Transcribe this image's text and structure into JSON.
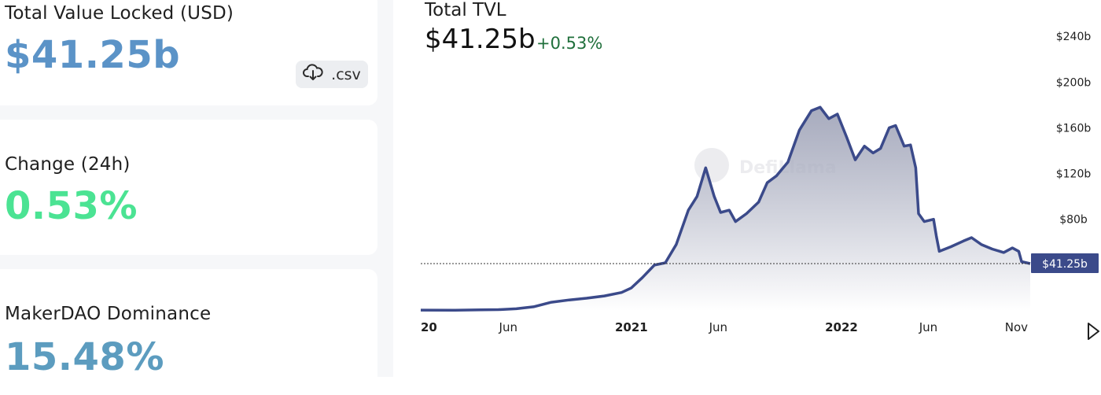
{
  "summary": {
    "tvl_label": "Total Value Locked (USD)",
    "tvl_value": "$41.25b",
    "csv_label": ".csv",
    "change_label": "Change (24h)",
    "change_value": "0.53%",
    "dominance_label": "MakerDAO Dominance",
    "dominance_value": "15.48%"
  },
  "colors": {
    "tvl_value": "#5b93c7",
    "change_value": "#4be393",
    "dominance_value": "#5c9cbf",
    "line": "#3b4a8a",
    "marker_bg": "#3b4a8a"
  },
  "icons": {
    "csv": "cloud-download-icon",
    "play": "play-icon"
  },
  "header": {
    "title": "Total TVL",
    "value": "$41.25b",
    "change": "+0.53%"
  },
  "watermark": "DefiLlama",
  "chart_data": {
    "type": "area",
    "title": "Total TVL",
    "ylabel": "",
    "xlabel": "",
    "y_unit": "b",
    "ylim": [
      0,
      258
    ],
    "xlim": [
      "2020-01-01",
      "2022-11-25"
    ],
    "y_ticks": [
      {
        "value": 240,
        "label": "$240b"
      },
      {
        "value": 200,
        "label": "$200b"
      },
      {
        "value": 160,
        "label": "$160b"
      },
      {
        "value": 120,
        "label": "$120b"
      },
      {
        "value": 80,
        "label": "$80b"
      }
    ],
    "x_ticks": [
      {
        "date": "2020-01-01",
        "label": "20",
        "bold": true
      },
      {
        "date": "2020-06-01",
        "label": "Jun",
        "bold": false
      },
      {
        "date": "2021-01-01",
        "label": "2021",
        "bold": true
      },
      {
        "date": "2021-06-01",
        "label": "Jun",
        "bold": false
      },
      {
        "date": "2022-01-01",
        "label": "2022",
        "bold": true
      },
      {
        "date": "2022-06-01",
        "label": "Jun",
        "bold": false
      },
      {
        "date": "2022-11-01",
        "label": "Nov",
        "bold": false
      }
    ],
    "current": {
      "value": 41.25,
      "label": "$41.25b"
    },
    "series": [
      {
        "points": [
          [
            "2020-01-01",
            0.6
          ],
          [
            "2020-03-01",
            0.5
          ],
          [
            "2020-04-15",
            0.8
          ],
          [
            "2020-05-15",
            1.0
          ],
          [
            "2020-06-15",
            1.8
          ],
          [
            "2020-07-15",
            3.5
          ],
          [
            "2020-08-15",
            7.5
          ],
          [
            "2020-09-15",
            9.5
          ],
          [
            "2020-10-15",
            11
          ],
          [
            "2020-11-15",
            13
          ],
          [
            "2020-12-15",
            16
          ],
          [
            "2021-01-01",
            20
          ],
          [
            "2021-01-20",
            29
          ],
          [
            "2021-02-10",
            40
          ],
          [
            "2021-03-01",
            42
          ],
          [
            "2021-03-20",
            58
          ],
          [
            "2021-04-10",
            88
          ],
          [
            "2021-04-25",
            100
          ],
          [
            "2021-05-10",
            125
          ],
          [
            "2021-05-25",
            100
          ],
          [
            "2021-06-05",
            86
          ],
          [
            "2021-06-20",
            88
          ],
          [
            "2021-07-01",
            78
          ],
          [
            "2021-07-20",
            85
          ],
          [
            "2021-08-10",
            95
          ],
          [
            "2021-08-25",
            112
          ],
          [
            "2021-09-10",
            118
          ],
          [
            "2021-09-30",
            130
          ],
          [
            "2021-10-20",
            158
          ],
          [
            "2021-11-10",
            175
          ],
          [
            "2021-11-25",
            178
          ],
          [
            "2021-12-10",
            168
          ],
          [
            "2021-12-25",
            172
          ],
          [
            "2022-01-10",
            152
          ],
          [
            "2022-01-25",
            132
          ],
          [
            "2022-02-10",
            144
          ],
          [
            "2022-02-25",
            138
          ],
          [
            "2022-03-10",
            142
          ],
          [
            "2022-03-25",
            160
          ],
          [
            "2022-04-05",
            162
          ],
          [
            "2022-04-20",
            144
          ],
          [
            "2022-05-01",
            145
          ],
          [
            "2022-05-10",
            125
          ],
          [
            "2022-05-15",
            85
          ],
          [
            "2022-05-25",
            78
          ],
          [
            "2022-06-10",
            80
          ],
          [
            "2022-06-15",
            65
          ],
          [
            "2022-06-20",
            52
          ],
          [
            "2022-07-10",
            56
          ],
          [
            "2022-08-01",
            61
          ],
          [
            "2022-08-15",
            64
          ],
          [
            "2022-09-01",
            58
          ],
          [
            "2022-09-20",
            54
          ],
          [
            "2022-10-10",
            51
          ],
          [
            "2022-10-25",
            55
          ],
          [
            "2022-11-05",
            52
          ],
          [
            "2022-11-10",
            43
          ],
          [
            "2022-11-25",
            41.25
          ]
        ]
      }
    ]
  }
}
